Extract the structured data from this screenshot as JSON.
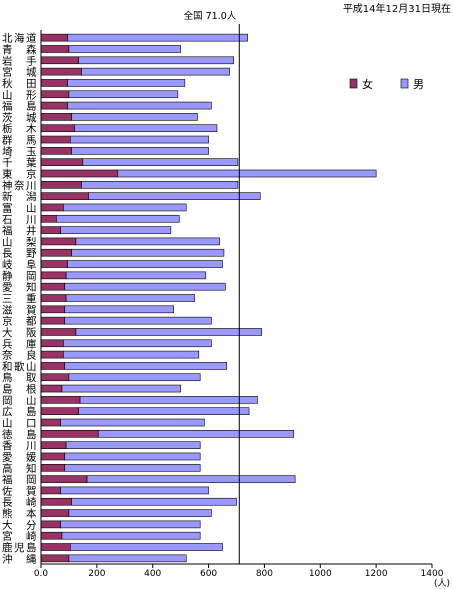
{
  "header": {
    "date_note": "平成14年12月31日現在"
  },
  "chart_data": {
    "type": "bar",
    "orientation": "horizontal",
    "stacked": true,
    "categories": [
      "北海道",
      "青森",
      "岩手",
      "宮城",
      "秋田",
      "山形",
      "福島",
      "茨城",
      "栃木",
      "群馬",
      "埼玉",
      "千葉",
      "東京",
      "神奈川",
      "新潟",
      "富山",
      "石川",
      "福井",
      "山梨",
      "長野",
      "岐阜",
      "静岡",
      "愛知",
      "三重",
      "滋賀",
      "京都",
      "大阪",
      "兵庫",
      "奈良",
      "和歌山",
      "鳥取",
      "島根",
      "岡山",
      "広島",
      "山口",
      "徳島",
      "香川",
      "愛媛",
      "高知",
      "福岡",
      "佐賀",
      "長崎",
      "熊本",
      "大分",
      "宮崎",
      "鹿児島",
      "沖縄"
    ],
    "series": [
      {
        "name": "女",
        "color": "#993366",
        "values": [
          95,
          100,
          135,
          145,
          95,
          100,
          95,
          110,
          120,
          105,
          110,
          150,
          275,
          145,
          170,
          80,
          55,
          70,
          125,
          110,
          95,
          90,
          85,
          90,
          85,
          85,
          125,
          80,
          80,
          85,
          100,
          75,
          140,
          135,
          70,
          205,
          90,
          85,
          85,
          165,
          70,
          110,
          100,
          70,
          75,
          105,
          100
        ]
      },
      {
        "name": "男",
        "color": "#9999ff",
        "values": [
          645,
          400,
          555,
          530,
          420,
          390,
          515,
          450,
          510,
          495,
          490,
          555,
          925,
          560,
          615,
          440,
          440,
          395,
          515,
          545,
          555,
          500,
          575,
          460,
          390,
          525,
          665,
          530,
          485,
          580,
          470,
          425,
          635,
          610,
          515,
          700,
          480,
          485,
          485,
          745,
          530,
          590,
          510,
          500,
          495,
          545,
          420
        ]
      }
    ],
    "reference_line": {
      "value": 710,
      "label": "全国 71.0人"
    },
    "xlim": [
      0,
      1400
    ],
    "xticks": [
      0,
      200,
      400,
      600,
      800,
      1000,
      1200,
      1400
    ],
    "xtick_labels": [
      "0.0",
      "200",
      "400",
      "600",
      "800",
      "1000",
      "1200",
      "1400"
    ],
    "xlabel": "(人)",
    "legend_placement": "right",
    "grid": false
  }
}
